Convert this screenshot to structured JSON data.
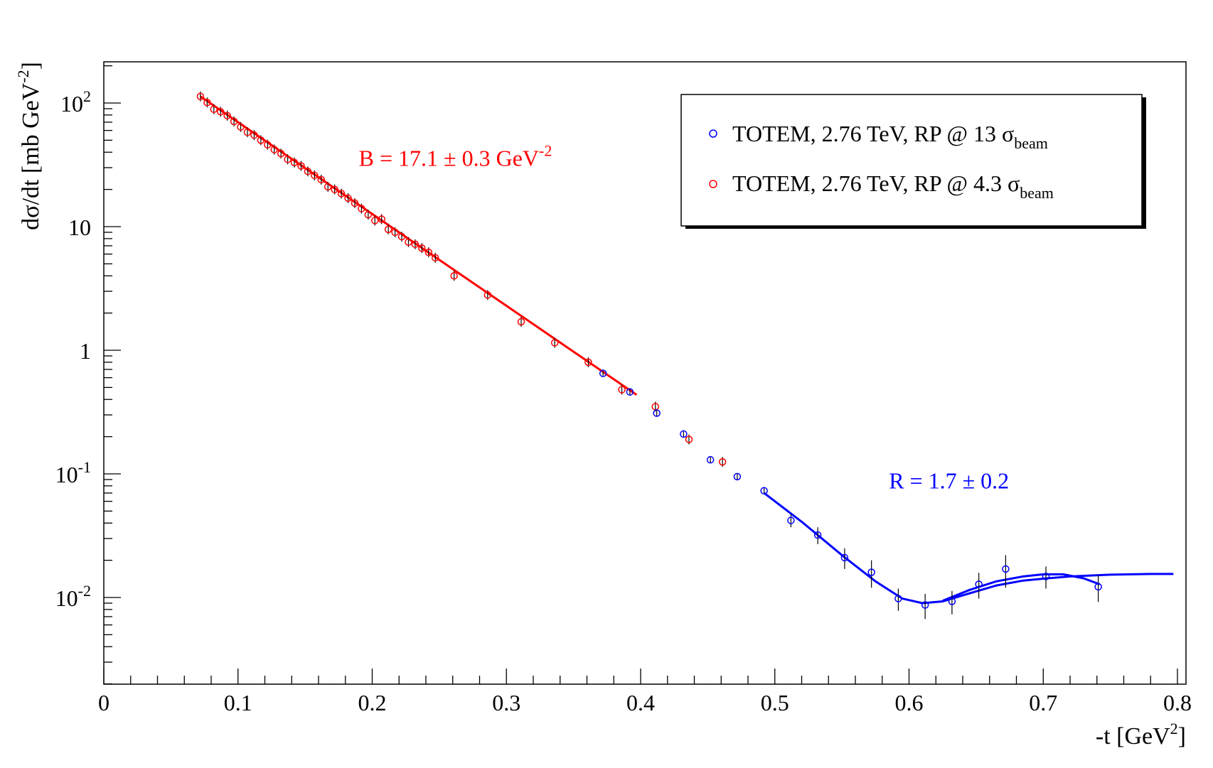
{
  "chart_data": {
    "type": "scatter",
    "title": "",
    "xlabel": "-t [GeV",
    "xlabel_sup": "2",
    "xlabel_end": "]",
    "ylabel": "dσ/dt [mb GeV",
    "ylabel_sup": "-2",
    "ylabel_end": "]",
    "xlim": [
      0,
      0.8
    ],
    "ylim": [
      0.002,
      200
    ],
    "yscale": "log",
    "grid": false,
    "x_ticks": [
      "0",
      "0.1",
      "0.2",
      "0.3",
      "0.4",
      "0.5",
      "0.6",
      "0.7",
      "0.8"
    ],
    "x_tick_values": [
      0,
      0.1,
      0.2,
      0.3,
      0.4,
      0.5,
      0.6,
      0.7,
      0.8
    ],
    "y_ticks": [
      {
        "value": 100,
        "base": "10",
        "exp": "2"
      },
      {
        "value": 10,
        "base": "10",
        "exp": ""
      },
      {
        "value": 1,
        "base": "1",
        "exp": ""
      },
      {
        "value": 0.1,
        "base": "10",
        "exp": "-1"
      },
      {
        "value": 0.01,
        "base": "10",
        "exp": "-2"
      }
    ],
    "legend": {
      "position": "top-right",
      "entries": [
        {
          "prefix": "TOTEM, 2.76 TeV, RP @ 13 σ",
          "sub": "beam",
          "color": "#0000ff",
          "marker": "open-circle"
        },
        {
          "prefix": "TOTEM, 2.76 TeV, RP @ 4.3 σ",
          "sub": "beam",
          "color": "#ff0000",
          "marker": "open-circle"
        }
      ]
    },
    "annotations": [
      {
        "text": "B = 17.1 ± 0.3 GeV",
        "sup": "-2",
        "color": "#ff0000",
        "x": 0.19,
        "y": 31
      },
      {
        "text": "R = 1.7 ± 0.2",
        "sup": "",
        "color": "#0000ff",
        "x": 0.585,
        "y": 0.076
      }
    ],
    "series": [
      {
        "name": "TOTEM, 2.76 TeV, RP @ 4.3 σbeam",
        "color": "#ff0000",
        "points": [
          {
            "x": 0.072,
            "y": 113
          },
          {
            "x": 0.077,
            "y": 101
          },
          {
            "x": 0.082,
            "y": 89
          },
          {
            "x": 0.087,
            "y": 85
          },
          {
            "x": 0.092,
            "y": 79
          },
          {
            "x": 0.097,
            "y": 71
          },
          {
            "x": 0.102,
            "y": 64
          },
          {
            "x": 0.107,
            "y": 58
          },
          {
            "x": 0.112,
            "y": 55
          },
          {
            "x": 0.117,
            "y": 50
          },
          {
            "x": 0.122,
            "y": 46
          },
          {
            "x": 0.127,
            "y": 42
          },
          {
            "x": 0.132,
            "y": 39
          },
          {
            "x": 0.137,
            "y": 35
          },
          {
            "x": 0.142,
            "y": 33
          },
          {
            "x": 0.147,
            "y": 31
          },
          {
            "x": 0.152,
            "y": 28
          },
          {
            "x": 0.157,
            "y": 26
          },
          {
            "x": 0.162,
            "y": 24
          },
          {
            "x": 0.167,
            "y": 21
          },
          {
            "x": 0.172,
            "y": 20
          },
          {
            "x": 0.177,
            "y": 18.5
          },
          {
            "x": 0.182,
            "y": 17
          },
          {
            "x": 0.187,
            "y": 15.5
          },
          {
            "x": 0.192,
            "y": 14
          },
          {
            "x": 0.197,
            "y": 12.5
          },
          {
            "x": 0.202,
            "y": 11.2
          },
          {
            "x": 0.207,
            "y": 11.5
          },
          {
            "x": 0.212,
            "y": 9.5
          },
          {
            "x": 0.217,
            "y": 9
          },
          {
            "x": 0.222,
            "y": 8.3
          },
          {
            "x": 0.227,
            "y": 7.5
          },
          {
            "x": 0.232,
            "y": 7.2
          },
          {
            "x": 0.237,
            "y": 6.7
          },
          {
            "x": 0.242,
            "y": 6.2
          },
          {
            "x": 0.247,
            "y": 5.6
          },
          {
            "x": 0.261,
            "y": 4.0
          },
          {
            "x": 0.286,
            "y": 2.8
          },
          {
            "x": 0.311,
            "y": 1.7
          },
          {
            "x": 0.336,
            "y": 1.15
          },
          {
            "x": 0.361,
            "y": 0.8
          },
          {
            "x": 0.386,
            "y": 0.48
          },
          {
            "x": 0.411,
            "y": 0.35
          },
          {
            "x": 0.436,
            "y": 0.19
          },
          {
            "x": 0.461,
            "y": 0.125
          }
        ]
      },
      {
        "name": "TOTEM, 2.76 TeV, RP @ 13 σbeam",
        "color": "#0000ff",
        "points": [
          {
            "x": 0.372,
            "y": 0.65,
            "err": 0.03
          },
          {
            "x": 0.392,
            "y": 0.46,
            "err": 0.03
          },
          {
            "x": 0.412,
            "y": 0.31,
            "err": 0.02
          },
          {
            "x": 0.432,
            "y": 0.21,
            "err": 0.01
          },
          {
            "x": 0.452,
            "y": 0.13,
            "err": 0.008
          },
          {
            "x": 0.472,
            "y": 0.095,
            "err": 0.006
          },
          {
            "x": 0.492,
            "y": 0.073,
            "err": 0.005
          },
          {
            "x": 0.512,
            "y": 0.042,
            "err": 0.005
          },
          {
            "x": 0.532,
            "y": 0.032,
            "err": 0.005
          },
          {
            "x": 0.552,
            "y": 0.021,
            "err": 0.004
          },
          {
            "x": 0.572,
            "y": 0.016,
            "err": 0.004
          },
          {
            "x": 0.592,
            "y": 0.0098,
            "err": 0.002
          },
          {
            "x": 0.612,
            "y": 0.0087,
            "err": 0.002
          },
          {
            "x": 0.632,
            "y": 0.0093,
            "err": 0.002
          },
          {
            "x": 0.652,
            "y": 0.0128,
            "err": 0.003
          },
          {
            "x": 0.672,
            "y": 0.017,
            "err": 0.005
          },
          {
            "x": 0.702,
            "y": 0.0148,
            "err": 0.003
          },
          {
            "x": 0.741,
            "y": 0.0122,
            "err": 0.003
          }
        ]
      }
    ],
    "fits": [
      {
        "name": "exponential fit",
        "color": "#ff0000",
        "x_range": [
          0.072,
          0.397
        ],
        "y0": 113,
        "slope_B": 17.1
      },
      {
        "name": "fit curve A",
        "color": "#0000ff",
        "points": [
          {
            "x": 0.492,
            "y": 0.07
          },
          {
            "x": 0.52,
            "y": 0.041
          },
          {
            "x": 0.55,
            "y": 0.022
          },
          {
            "x": 0.575,
            "y": 0.0135
          },
          {
            "x": 0.595,
            "y": 0.0098
          },
          {
            "x": 0.61,
            "y": 0.009
          },
          {
            "x": 0.625,
            "y": 0.0093
          },
          {
            "x": 0.645,
            "y": 0.0108
          },
          {
            "x": 0.665,
            "y": 0.0125
          },
          {
            "x": 0.685,
            "y": 0.0137
          },
          {
            "x": 0.7,
            "y": 0.0142
          },
          {
            "x": 0.72,
            "y": 0.0148
          },
          {
            "x": 0.75,
            "y": 0.0153
          },
          {
            "x": 0.78,
            "y": 0.0155
          },
          {
            "x": 0.797,
            "y": 0.0155
          }
        ]
      },
      {
        "name": "fit curve B",
        "color": "#0000ff",
        "points": [
          {
            "x": 0.625,
            "y": 0.0094
          },
          {
            "x": 0.645,
            "y": 0.0115
          },
          {
            "x": 0.665,
            "y": 0.0135
          },
          {
            "x": 0.685,
            "y": 0.0148
          },
          {
            "x": 0.7,
            "y": 0.0154
          },
          {
            "x": 0.715,
            "y": 0.0154
          },
          {
            "x": 0.73,
            "y": 0.0143
          },
          {
            "x": 0.742,
            "y": 0.0128
          }
        ]
      }
    ]
  }
}
